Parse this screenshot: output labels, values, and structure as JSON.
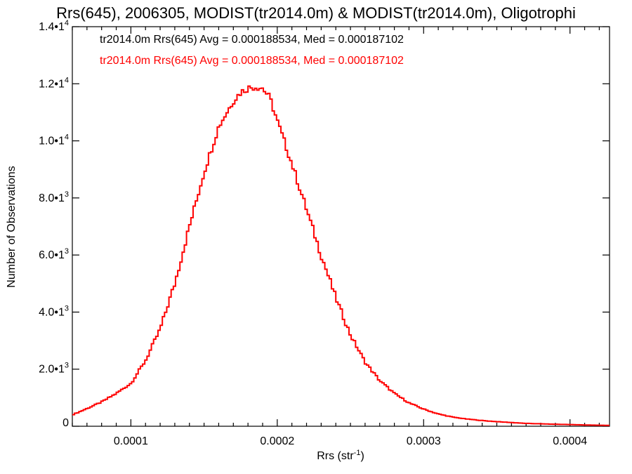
{
  "chart_data": {
    "type": "histogram",
    "title": "Rrs(645), 2006305, MODIST(tr2014.0m) & MODIST(tr2014.0m), Oligotrophi",
    "xlabel_main": "Rrs (str",
    "xlabel_sup": "-1",
    "xlabel_end": ")",
    "ylabel": "Number of Observations",
    "xlim": [
      6e-05,
      0.000427
    ],
    "ylim": [
      0,
      14000
    ],
    "x_ticks": [
      {
        "value": 0.0001,
        "label": "0.0001"
      },
      {
        "value": 0.0002,
        "label": "0.0002"
      },
      {
        "value": 0.0003,
        "label": "0.0003"
      },
      {
        "value": 0.0004,
        "label": "0.0004"
      }
    ],
    "y_ticks": [
      {
        "value": 0,
        "mant": "0",
        "exp": ""
      },
      {
        "value": 2000,
        "mant": "2.0•1",
        "exp": "3"
      },
      {
        "value": 4000,
        "mant": "4.0•1",
        "exp": "3"
      },
      {
        "value": 6000,
        "mant": "6.0•1",
        "exp": "3"
      },
      {
        "value": 8000,
        "mant": "8.0•1",
        "exp": "3"
      },
      {
        "value": 10000,
        "mant": "1.0•1",
        "exp": "4"
      },
      {
        "value": 12000,
        "mant": "1.2•1",
        "exp": "4"
      },
      {
        "value": 14000,
        "mant": "1.4•1",
        "exp": "4"
      }
    ],
    "annotations": [
      {
        "text": "tr2014.0m Rrs(645) Avg = 0.000188534, Med = 0.000187102",
        "color": "#000000"
      },
      {
        "text": "tr2014.0m Rrs(645) Avg = 0.000188534, Med = 0.000187102",
        "color": "#ff0000"
      }
    ],
    "series": [
      {
        "color": "#ff0000",
        "x": [
          6e-05,
          7e-05,
          8e-05,
          9e-05,
          0.0001,
          0.00011,
          0.00012,
          0.00013,
          0.00014,
          0.00015,
          0.00016,
          0.00017,
          0.000175,
          0.00018,
          0.000185,
          0.00019,
          0.000195,
          0.0002,
          0.00021,
          0.00022,
          0.00023,
          0.00024,
          0.00025,
          0.00026,
          0.00027,
          0.00028,
          0.00029,
          0.0003,
          0.00031,
          0.00032,
          0.00033,
          0.00034,
          0.00035,
          0.00036,
          0.00037,
          0.00038,
          0.00039,
          0.0004,
          0.00041,
          0.00042,
          0.000427
        ],
        "y": [
          400,
          620,
          850,
          1150,
          1500,
          2300,
          3400,
          5000,
          7000,
          8900,
          10500,
          11400,
          11700,
          11850,
          11900,
          11850,
          11500,
          10700,
          9200,
          7600,
          6000,
          4500,
          3200,
          2250,
          1600,
          1150,
          820,
          600,
          430,
          320,
          250,
          200,
          160,
          130,
          100,
          85,
          70,
          60,
          45,
          35,
          30
        ]
      }
    ]
  }
}
